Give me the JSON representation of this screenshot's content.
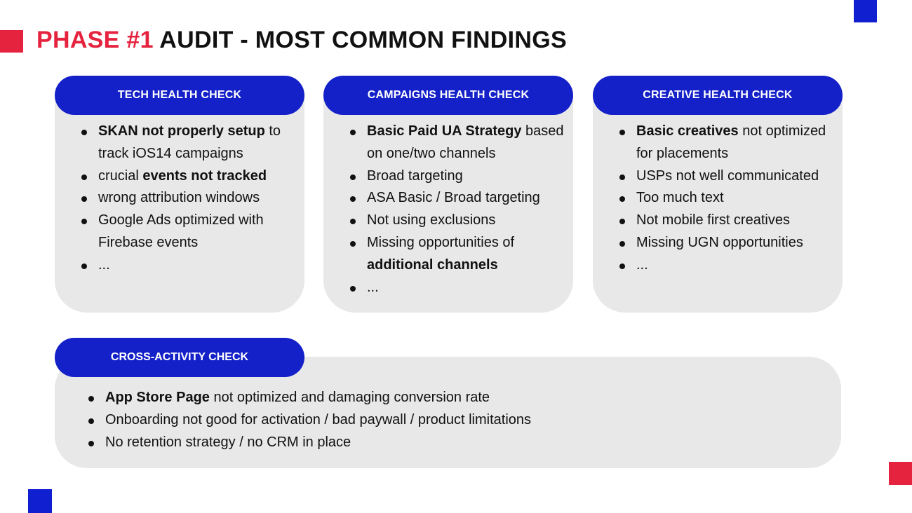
{
  "title": {
    "accent": "PHASE #1",
    "rest": " AUDIT - MOST COMMON FINDINGS"
  },
  "cards": [
    {
      "label": "TECH HEALTH CHECK",
      "items": [
        {
          "bold": "SKAN not properly setup",
          "rest": " to track iOS14 campaigns"
        },
        {
          "pre": "crucial ",
          "bold": "events not tracked"
        },
        {
          "rest": "wrong attribution windows"
        },
        {
          "rest": "Google Ads optimized with Firebase events"
        },
        {
          "rest": "..."
        }
      ]
    },
    {
      "label": "CAMPAIGNS HEALTH CHECK",
      "items": [
        {
          "bold": "Basic Paid UA Strategy",
          "rest": " based on one/two channels"
        },
        {
          "rest": "Broad targeting"
        },
        {
          "rest": "ASA Basic / Broad targeting"
        },
        {
          "rest": "Not using exclusions"
        },
        {
          "pre": "Missing opportunities of ",
          "bold": "additional channels"
        },
        {
          "rest": "..."
        }
      ]
    },
    {
      "label": "CREATIVE HEALTH CHECK",
      "items": [
        {
          "bold": "Basic creatives",
          "rest": " not optimized for placements"
        },
        {
          "rest": "USPs not well communicated"
        },
        {
          "rest": "Too much text"
        },
        {
          "rest": "Not mobile first creatives"
        },
        {
          "rest": "Missing UGN opportunities"
        },
        {
          "rest": "..."
        }
      ]
    }
  ],
  "cross": {
    "label": "CROSS-ACTIVITY CHECK",
    "items": [
      {
        "bold": "App Store Page",
        "rest": " not optimized and damaging conversion rate"
      },
      {
        "rest": "Onboarding not good for activation / bad paywall / product limitations"
      },
      {
        "rest": "No retention strategy / no CRM in place"
      }
    ]
  },
  "colors": {
    "accent_red": "#e5233f",
    "brand_blue": "#1420c8",
    "card_gray": "#e8e8e8"
  }
}
